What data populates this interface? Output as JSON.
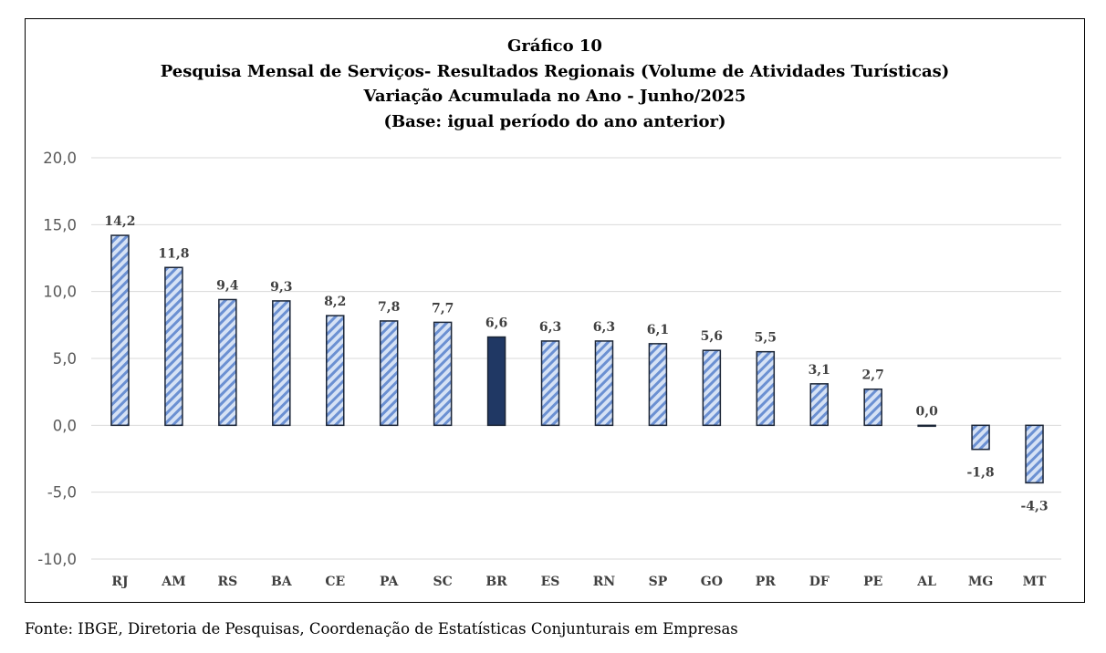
{
  "chart_data": {
    "type": "bar",
    "title_lines": [
      "Gráfico 10",
      "Pesquisa Mensal de Serviços- Resultados Regionais (Volume de Atividades Turísticas)",
      "Variação Acumulada no Ano - Junho/2025",
      "(Base: igual período do ano anterior)"
    ],
    "categories": [
      "RJ",
      "AM",
      "RS",
      "BA",
      "CE",
      "PA",
      "SC",
      "BR",
      "ES",
      "RN",
      "SP",
      "GO",
      "PR",
      "DF",
      "PE",
      "AL",
      "MG",
      "MT"
    ],
    "values": [
      14.2,
      11.8,
      9.4,
      9.3,
      8.2,
      7.8,
      7.7,
      6.6,
      6.3,
      6.3,
      6.1,
      5.6,
      5.5,
      3.1,
      2.7,
      0.0,
      -1.8,
      -4.3
    ],
    "data_labels": [
      "14,2",
      "11,8",
      "9,4",
      "9,3",
      "8,2",
      "7,8",
      "7,7",
      "6,6",
      "6,3",
      "6,3",
      "6,1",
      "5,6",
      "5,5",
      "3,1",
      "2,7",
      "0,0",
      "-1,8",
      "-4,3"
    ],
    "highlight_index": 7,
    "ylim": [
      -10,
      20
    ],
    "yticks": [
      20,
      15,
      10,
      5,
      0,
      -5,
      -10
    ],
    "ytick_labels": [
      "20,0",
      "15,0",
      "10,0",
      "5,0",
      "0,0",
      "-5,0",
      "-10,0"
    ],
    "xlabel": "",
    "ylabel": "",
    "grid": true
  },
  "source": "Fonte: IBGE, Diretoria de Pesquisas, Coordenação de Estatísticas Conjunturais em Empresas",
  "colors": {
    "bar_fill": "#d6e2f5",
    "bar_stripe": "#6b90d2",
    "bar_outline": "#1b2536",
    "highlight_fill": "#203864",
    "grid": "#d9d9d9",
    "border": "#000000"
  }
}
